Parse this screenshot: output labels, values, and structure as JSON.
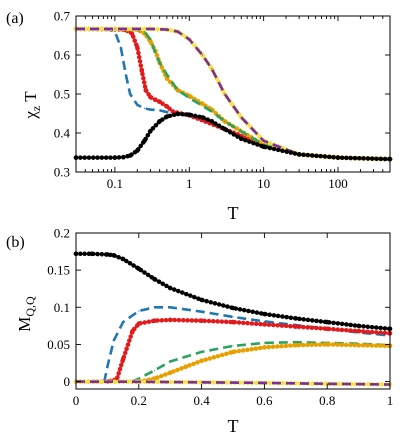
{
  "chart_data": [
    {
      "panel_label": "(a)",
      "type": "scatter",
      "xlabel": "T",
      "ylabel": "χ",
      "ylabel_sub": "z",
      "ylabel_suffix": " T",
      "xscale": "log",
      "xlim": [
        0.03,
        500
      ],
      "ylim": [
        0.3,
        0.7
      ],
      "xtick_values": [
        0.1,
        1,
        10,
        100
      ],
      "xtick_labels": [
        "0.1",
        "1",
        "10",
        "100"
      ],
      "ytick_values": [
        0.3,
        0.4,
        0.5,
        0.6,
        0.7
      ],
      "ytick_labels": [
        "0.3",
        "0.4",
        "0.5",
        "0.6",
        "0.7"
      ],
      "grid": false,
      "series": [
        {
          "style": "dashed",
          "color": "#1f77b4",
          "x": [
            0.03,
            0.08,
            0.1,
            0.12,
            0.14,
            0.16,
            0.2,
            0.25,
            0.3,
            0.4,
            0.6,
            1,
            3,
            10,
            30,
            100,
            500
          ],
          "y": [
            0.668,
            0.666,
            0.66,
            0.62,
            0.55,
            0.5,
            0.472,
            0.463,
            0.46,
            0.458,
            0.45,
            0.445,
            0.41,
            0.37,
            0.345,
            0.337,
            0.333
          ]
        },
        {
          "style": "dots",
          "color": "#e31a1c",
          "x": [
            0.03,
            0.1,
            0.14,
            0.17,
            0.2,
            0.23,
            0.26,
            0.3,
            0.35,
            0.4,
            0.5,
            0.6,
            1,
            3,
            10,
            30,
            100,
            500
          ],
          "y": [
            0.667,
            0.666,
            0.664,
            0.655,
            0.62,
            0.56,
            0.51,
            0.492,
            0.485,
            0.48,
            0.468,
            0.455,
            0.445,
            0.41,
            0.37,
            0.345,
            0.337,
            0.333
          ]
        },
        {
          "style": "dots",
          "color": "#e8a000",
          "x": [
            0.03,
            0.1,
            0.2,
            0.25,
            0.3,
            0.35,
            0.4,
            0.5,
            0.7,
            1,
            1.5,
            2,
            3,
            10,
            30,
            100,
            500
          ],
          "y": [
            0.667,
            0.667,
            0.665,
            0.655,
            0.635,
            0.61,
            0.58,
            0.54,
            0.51,
            0.495,
            0.475,
            0.46,
            0.43,
            0.37,
            0.345,
            0.337,
            0.333
          ]
        },
        {
          "style": "dashed",
          "color": "#2ca25f",
          "x": [
            0.03,
            0.1,
            0.2,
            0.25,
            0.3,
            0.35,
            0.4,
            0.5,
            0.7,
            1,
            2,
            3,
            10,
            30,
            100,
            500
          ],
          "y": [
            0.667,
            0.667,
            0.666,
            0.66,
            0.64,
            0.605,
            0.58,
            0.55,
            0.51,
            0.49,
            0.455,
            0.43,
            0.37,
            0.345,
            0.337,
            0.333
          ]
        },
        {
          "style": "dots",
          "color": "#f2e34c",
          "x": [
            0.03,
            0.1,
            0.3,
            0.5,
            0.7,
            1,
            1.5,
            2,
            3,
            5,
            10,
            30,
            100,
            500
          ],
          "y": [
            0.667,
            0.667,
            0.667,
            0.665,
            0.66,
            0.64,
            0.6,
            0.565,
            0.5,
            0.44,
            0.38,
            0.345,
            0.337,
            0.333
          ]
        },
        {
          "style": "dashed",
          "color": "#7b2f9e",
          "x": [
            0.03,
            0.1,
            0.3,
            0.5,
            0.7,
            1,
            1.5,
            2,
            3,
            5,
            10,
            30,
            100,
            500
          ],
          "y": [
            0.667,
            0.667,
            0.667,
            0.665,
            0.66,
            0.64,
            0.6,
            0.565,
            0.5,
            0.44,
            0.38,
            0.345,
            0.337,
            0.333
          ]
        },
        {
          "style": "dots",
          "color": "#000000",
          "x": [
            0.03,
            0.1,
            0.13,
            0.16,
            0.2,
            0.25,
            0.3,
            0.4,
            0.5,
            0.7,
            1,
            1.5,
            2,
            3,
            5,
            10,
            30,
            100,
            500
          ],
          "y": [
            0.337,
            0.337,
            0.338,
            0.342,
            0.355,
            0.38,
            0.405,
            0.43,
            0.442,
            0.449,
            0.447,
            0.44,
            0.43,
            0.41,
            0.385,
            0.365,
            0.345,
            0.337,
            0.333
          ]
        }
      ]
    },
    {
      "panel_label": "(b)",
      "type": "scatter",
      "xlabel": "T",
      "ylabel": "M",
      "ylabel_sub": "Q,Q",
      "ylabel_suffix": "",
      "xscale": "linear",
      "xlim": [
        0,
        1
      ],
      "ylim": [
        -0.01,
        0.2
      ],
      "xtick_values": [
        0,
        0.2,
        0.4,
        0.6,
        0.8,
        1
      ],
      "xtick_labels": [
        "0",
        "0.2",
        "0.4",
        "0.6",
        "0.8",
        "1"
      ],
      "ytick_values": [
        0,
        0.05,
        0.1,
        0.15,
        0.2
      ],
      "ytick_labels": [
        "0",
        "0.05",
        "0.1",
        "0.15",
        "0.2"
      ],
      "grid": false,
      "series": [
        {
          "style": "dots",
          "color": "#000000",
          "x": [
            0,
            0.05,
            0.1,
            0.12,
            0.15,
            0.2,
            0.25,
            0.3,
            0.4,
            0.5,
            0.6,
            0.7,
            0.8,
            0.9,
            1.0
          ],
          "y": [
            0.172,
            0.172,
            0.171,
            0.17,
            0.165,
            0.152,
            0.138,
            0.126,
            0.11,
            0.099,
            0.091,
            0.085,
            0.08,
            0.075,
            0.071
          ]
        },
        {
          "style": "dashed",
          "color": "#1f77b4",
          "x": [
            0,
            0.09,
            0.1,
            0.12,
            0.15,
            0.2,
            0.25,
            0.3,
            0.4,
            0.5,
            0.6,
            0.7,
            0.8,
            0.9,
            1.0
          ],
          "y": [
            0,
            0,
            0.02,
            0.055,
            0.08,
            0.095,
            0.1,
            0.1,
            0.094,
            0.087,
            0.081,
            0.076,
            0.071,
            0.066,
            0.062
          ]
        },
        {
          "style": "dots",
          "color": "#e31a1c",
          "x": [
            0,
            0.1,
            0.13,
            0.15,
            0.18,
            0.2,
            0.25,
            0.3,
            0.4,
            0.5,
            0.6,
            0.7,
            0.8,
            0.9,
            1.0
          ],
          "y": [
            0,
            0,
            0.003,
            0.03,
            0.068,
            0.078,
            0.082,
            0.083,
            0.082,
            0.08,
            0.077,
            0.074,
            0.071,
            0.068,
            0.065
          ]
        },
        {
          "style": "dashed",
          "color": "#2ca25f",
          "x": [
            0,
            0.18,
            0.2,
            0.25,
            0.3,
            0.4,
            0.5,
            0.6,
            0.7,
            0.8,
            0.9,
            1.0
          ],
          "y": [
            0,
            0,
            0.004,
            0.015,
            0.027,
            0.04,
            0.048,
            0.052,
            0.053,
            0.052,
            0.051,
            0.049
          ]
        },
        {
          "style": "dots",
          "color": "#e8a000",
          "x": [
            0,
            0.2,
            0.25,
            0.3,
            0.35,
            0.4,
            0.5,
            0.6,
            0.7,
            0.8,
            0.9,
            1.0
          ],
          "y": [
            0,
            0,
            0.004,
            0.012,
            0.02,
            0.028,
            0.04,
            0.046,
            0.049,
            0.05,
            0.049,
            0.048
          ]
        },
        {
          "style": "dots",
          "color": "#f2e34c",
          "x": [
            0,
            0.2,
            0.4,
            0.6,
            0.8,
            1.0
          ],
          "y": [
            0,
            -0.0003,
            -0.001,
            -0.0018,
            -0.003,
            -0.004
          ]
        },
        {
          "style": "dashed",
          "color": "#7b2f9e",
          "x": [
            0,
            0.2,
            0.4,
            0.6,
            0.8,
            1.0
          ],
          "y": [
            0,
            -0.0003,
            -0.001,
            -0.0018,
            -0.003,
            -0.004
          ]
        }
      ]
    }
  ]
}
